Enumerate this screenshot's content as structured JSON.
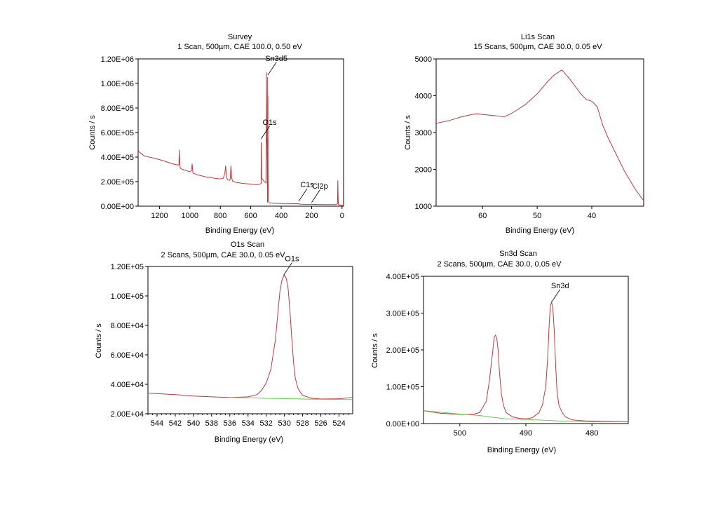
{
  "colors": {
    "spectrum": "#c0393b",
    "background_fit": "#55cc44",
    "axis": "#000000"
  },
  "chart_data": [
    {
      "id": "survey",
      "type": "line",
      "title": "Survey",
      "subtitle": "1 Scan,  500µm,  CAE 100.0,  0.50 eV",
      "xlabel": "Binding Energy (eV)",
      "ylabel": "Counts / s",
      "xlim": [
        1340,
        -10
      ],
      "ylim": [
        0,
        1200000
      ],
      "xticks": [
        1200,
        1000,
        800,
        600,
        400,
        200,
        0
      ],
      "xtick_labels": [
        "1200",
        "1000",
        "800",
        "600",
        "400",
        "200",
        "0"
      ],
      "yticks": [
        0,
        200000,
        400000,
        600000,
        800000,
        1000000,
        1200000
      ],
      "ytick_labels": [
        "0.00E+00",
        "2.00E+05",
        "4.00E+05",
        "6.00E+05",
        "8.00E+05",
        "1.00E+06",
        "1.20E+06"
      ],
      "series": [
        {
          "name": "spectrum",
          "x": [
            1340,
            1300,
            1250,
            1200,
            1150,
            1100,
            1075,
            1072,
            1070,
            1065,
            1060,
            1000,
            990,
            985,
            980,
            950,
            900,
            850,
            800,
            780,
            770,
            765,
            760,
            755,
            750,
            740,
            735,
            730,
            725,
            720,
            700,
            650,
            600,
            560,
            540,
            532,
            531,
            530,
            528,
            510,
            500,
            497,
            495,
            493,
            490,
            489,
            488,
            487,
            486,
            485,
            480,
            470,
            400,
            300,
            285,
            280,
            270,
            250,
            200,
            150,
            100,
            40,
            30,
            28,
            26,
            24,
            20,
            0,
            -5
          ],
          "y": [
            450000,
            410000,
            395000,
            380000,
            360000,
            340000,
            335000,
            340000,
            460000,
            320000,
            305000,
            280000,
            290000,
            345000,
            270000,
            255000,
            240000,
            230000,
            222000,
            228000,
            270000,
            330000,
            240000,
            225000,
            215000,
            210000,
            220000,
            330000,
            230000,
            205000,
            195000,
            185000,
            180000,
            175000,
            180000,
            185000,
            520000,
            500000,
            230000,
            200000,
            190000,
            1090000,
            560000,
            500000,
            30000,
            1050000,
            460000,
            900000,
            350000,
            40000,
            30000,
            25000,
            22000,
            20000,
            20000,
            18000,
            16000,
            15000,
            15000,
            14000,
            13000,
            13000,
            20000,
            210000,
            80000,
            12000,
            10000,
            8000,
            7000
          ]
        }
      ],
      "annotations": [
        {
          "label": "Sn3d5",
          "x": 487,
          "y": 1070000
        },
        {
          "label": "O1s",
          "x": 531,
          "y": 550000
        },
        {
          "label": "C1s",
          "x": 285,
          "y": 40000
        },
        {
          "label": "Cl2p",
          "x": 200,
          "y": 30000
        }
      ]
    },
    {
      "id": "li1s",
      "type": "line",
      "title": "Li1s Scan",
      "subtitle": "15 Scans,  500µm,  CAE 30.0,  0.05 eV",
      "xlabel": "Binding Energy (eV)",
      "ylabel": "Counts / s",
      "xlim": [
        68.5,
        30.5
      ],
      "ylim": [
        1000,
        5000
      ],
      "xticks": [
        60,
        50,
        40
      ],
      "xtick_labels": [
        "60",
        "50",
        "40"
      ],
      "yticks": [
        1000,
        2000,
        3000,
        4000,
        5000
      ],
      "ytick_labels": [
        "1000",
        "2000",
        "3000",
        "4000",
        "5000"
      ],
      "series": [
        {
          "name": "spectrum",
          "x": [
            68.5,
            66,
            64,
            62,
            61,
            60,
            58,
            56,
            55,
            54,
            52,
            50,
            48,
            47,
            46,
            45.5,
            45,
            44,
            43,
            42,
            41,
            40,
            39,
            38,
            37,
            36,
            35,
            34,
            33,
            32,
            31,
            30.5
          ],
          "y": [
            3250,
            3330,
            3420,
            3490,
            3510,
            3490,
            3460,
            3430,
            3500,
            3580,
            3780,
            4050,
            4400,
            4550,
            4650,
            4700,
            4620,
            4450,
            4250,
            4050,
            3900,
            3850,
            3700,
            3200,
            2850,
            2550,
            2250,
            1950,
            1700,
            1450,
            1250,
            1150
          ]
        }
      ]
    },
    {
      "id": "o1s",
      "type": "line",
      "title": "O1s Scan",
      "subtitle": "2 Scans,  500µm,  CAE 30.0,  0.05 eV",
      "xlabel": "Binding Energy (eV)",
      "ylabel": "Counts / s",
      "xlim": [
        545,
        522.5
      ],
      "ylim": [
        20000,
        120000
      ],
      "xticks": [
        544,
        542,
        540,
        538,
        536,
        534,
        532,
        530,
        528,
        526,
        524
      ],
      "xtick_labels": [
        "544",
        "542",
        "540",
        "538",
        "536",
        "534",
        "532",
        "530",
        "528",
        "526",
        "524"
      ],
      "yticks": [
        20000,
        40000,
        60000,
        80000,
        100000,
        120000
      ],
      "ytick_labels": [
        "2.00E+04",
        "4.00E+04",
        "6.00E+04",
        "8.00E+04",
        "1.00E+05",
        "1.20E+05"
      ],
      "series": [
        {
          "name": "spectrum",
          "x": [
            545,
            542,
            540,
            538,
            536,
            534,
            533,
            532.5,
            532,
            531.5,
            531,
            530.7,
            530.5,
            530.3,
            530.2,
            530,
            529.8,
            529.6,
            529.4,
            529.2,
            529,
            528.8,
            528.5,
            528,
            527,
            526,
            524,
            522.5
          ],
          "y": [
            34000,
            33000,
            32000,
            31500,
            31000,
            31500,
            33000,
            36000,
            41000,
            50000,
            70000,
            90000,
            103000,
            110000,
            112000,
            114000,
            112000,
            105000,
            90000,
            72000,
            55000,
            44000,
            37000,
            32500,
            30500,
            30000,
            30200,
            31000
          ]
        },
        {
          "name": "background",
          "x": [
            536,
            534,
            532,
            530,
            528,
            526,
            524,
            522.5
          ],
          "y": [
            31000,
            30800,
            30500,
            30300,
            30000,
            29800,
            29700,
            29600
          ]
        }
      ],
      "annotations": [
        {
          "label": "O1s",
          "x": 530.1,
          "y": 114000
        }
      ]
    },
    {
      "id": "sn3d",
      "type": "line",
      "title": "Sn3d Scan",
      "subtitle": "2 Scans,  500µm,  CAE 30.0,  0.05 eV",
      "xlabel": "Binding Energy (eV)",
      "ylabel": "Counts / s",
      "xlim": [
        505.5,
        474.5
      ],
      "ylim": [
        0,
        400000
      ],
      "xticks": [
        500,
        490,
        480
      ],
      "xtick_labels": [
        "500",
        "490",
        "480"
      ],
      "yticks": [
        0,
        100000,
        200000,
        300000,
        400000
      ],
      "ytick_labels": [
        "0.00E+00",
        "1.00E+05",
        "2.00E+05",
        "3.00E+05",
        "4.00E+05"
      ],
      "series": [
        {
          "name": "spectrum",
          "x": [
            505.5,
            503,
            500,
            498,
            497,
            496,
            495.5,
            495,
            494.8,
            494.6,
            494.4,
            494.2,
            494,
            493.7,
            493.4,
            493,
            492,
            491,
            490,
            489,
            488,
            487.5,
            487,
            486.7,
            486.5,
            486.3,
            486.1,
            485.9,
            485.7,
            485.5,
            485.3,
            485,
            484.5,
            484,
            483,
            481,
            478,
            474.5
          ],
          "y": [
            35000,
            28000,
            25000,
            25000,
            30000,
            60000,
            120000,
            200000,
            235000,
            240000,
            230000,
            200000,
            140000,
            80000,
            50000,
            30000,
            18000,
            14000,
            13000,
            16000,
            30000,
            50000,
            100000,
            180000,
            260000,
            320000,
            330000,
            310000,
            250000,
            160000,
            90000,
            50000,
            30000,
            18000,
            10000,
            7000,
            6000,
            5000
          ]
        },
        {
          "name": "background",
          "x": [
            505.5,
            500,
            497,
            495,
            493,
            490,
            487,
            485,
            483,
            480,
            474.5
          ],
          "y": [
            35000,
            26000,
            22000,
            17000,
            13000,
            11000,
            9000,
            7000,
            5500,
            5000,
            4500
          ]
        }
      ],
      "annotations": [
        {
          "label": "Sn3d",
          "x": 486.1,
          "y": 330000
        }
      ]
    }
  ]
}
